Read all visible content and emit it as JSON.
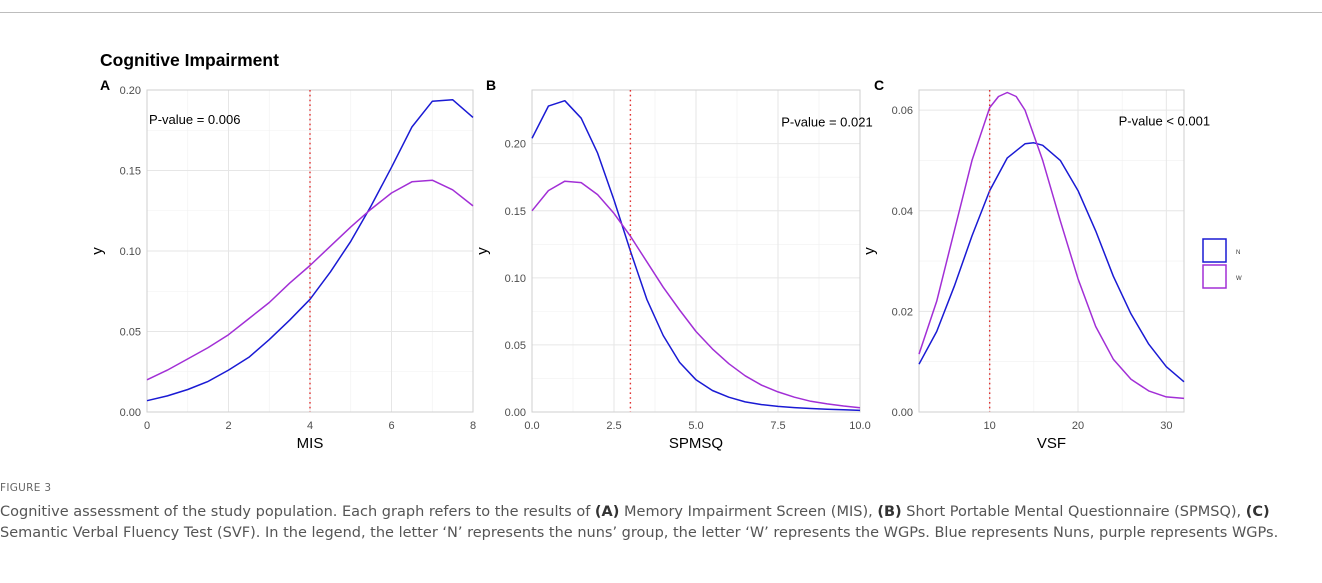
{
  "figure": {
    "super_title": "Cognitive Impairment",
    "caption_label": "FIGURE 3",
    "caption_parts": [
      {
        "text": "Cognitive assessment of the study population. Each graph refers to the results of ",
        "bold": false
      },
      {
        "text": "(A)",
        "bold": true
      },
      {
        "text": " Memory Impairment Screen (MIS), ",
        "bold": false
      },
      {
        "text": "(B)",
        "bold": true
      },
      {
        "text": " Short Portable Mental Questionnaire (SPMSQ), ",
        "bold": false
      },
      {
        "text": "(C)",
        "bold": true
      },
      {
        "text": " Semantic Verbal Fluency Test (SVF). In the legend, the letter ‘N’ represents the nuns’ group, the letter ‘W’ represents the WGPs. Blue represents Nuns, purple represents WGPs.",
        "bold": false
      }
    ]
  },
  "legend": {
    "position": "right",
    "items": [
      {
        "key": "N",
        "color": "#1a1ad4"
      },
      {
        "key": "W",
        "color": "#a22fd6"
      }
    ]
  },
  "colors": {
    "N": "#1a1ad4",
    "W": "#a22fd6",
    "vline": "#e03030",
    "grid": "#e6e6e6",
    "panel_border": "#cfcfcf",
    "tick_text": "#4d4d4d"
  },
  "chart_data": [
    {
      "panel": "A",
      "type": "line",
      "xlabel": "MIS",
      "ylabel": "y",
      "xlim": [
        0,
        8
      ],
      "ylim": [
        0,
        0.2
      ],
      "xticks": [
        0,
        2,
        4,
        6,
        8
      ],
      "yticks": [
        0,
        0.05,
        0.1,
        0.15,
        0.2
      ],
      "xtick_labels": [
        "0",
        "2",
        "4",
        "6",
        "8"
      ],
      "ytick_labels": [
        "0.00",
        "0.05",
        "0.10",
        "0.15",
        "0.20"
      ],
      "vline": 4,
      "annotation": {
        "text": "P-value = 0.006",
        "x": 0.05,
        "y": 0.182
      },
      "grid": true,
      "series": [
        {
          "key": "N",
          "x": [
            0,
            0.5,
            1,
            1.5,
            2,
            2.5,
            3,
            3.5,
            4,
            4.5,
            5,
            5.5,
            6,
            6.5,
            7,
            7.5,
            8
          ],
          "y": [
            0.007,
            0.01,
            0.014,
            0.019,
            0.026,
            0.034,
            0.045,
            0.057,
            0.07,
            0.087,
            0.106,
            0.128,
            0.152,
            0.177,
            0.193,
            0.194,
            0.183
          ]
        },
        {
          "key": "W",
          "x": [
            0,
            0.5,
            1,
            1.5,
            2,
            2.5,
            3,
            3.5,
            4,
            4.5,
            5,
            5.5,
            6,
            6.5,
            7,
            7.5,
            8
          ],
          "y": [
            0.02,
            0.026,
            0.033,
            0.04,
            0.048,
            0.058,
            0.068,
            0.08,
            0.091,
            0.103,
            0.115,
            0.126,
            0.136,
            0.143,
            0.144,
            0.138,
            0.128
          ]
        }
      ]
    },
    {
      "panel": "B",
      "type": "line",
      "xlabel": "SPMSQ",
      "ylabel": "y",
      "xlim": [
        0,
        10
      ],
      "ylim": [
        0,
        0.24
      ],
      "xticks": [
        0,
        2.5,
        5,
        7.5,
        10
      ],
      "yticks": [
        0,
        0.05,
        0.1,
        0.15,
        0.2
      ],
      "xtick_labels": [
        "0.0",
        "2.5",
        "5.0",
        "7.5",
        "10.0"
      ],
      "ytick_labels": [
        "0.00",
        "0.05",
        "0.10",
        "0.15",
        "0.20"
      ],
      "vline": 3,
      "annotation": {
        "text": "P-value = 0.021",
        "x": 7.6,
        "y": 0.2165
      },
      "grid": true,
      "series": [
        {
          "key": "N",
          "x": [
            0,
            0.5,
            1,
            1.5,
            2,
            2.5,
            3,
            3.5,
            4,
            4.5,
            5,
            5.5,
            6,
            6.5,
            7,
            7.5,
            8,
            8.5,
            9,
            9.5,
            10
          ],
          "y": [
            0.204,
            0.228,
            0.232,
            0.219,
            0.193,
            0.158,
            0.12,
            0.084,
            0.057,
            0.037,
            0.024,
            0.016,
            0.011,
            0.0075,
            0.0055,
            0.0042,
            0.0033,
            0.0026,
            0.0021,
            0.0017,
            0.0012
          ]
        },
        {
          "key": "W",
          "x": [
            0,
            0.5,
            1,
            1.5,
            2,
            2.5,
            3,
            3.5,
            4,
            4.5,
            5,
            5.5,
            6,
            6.5,
            7,
            7.5,
            8,
            8.5,
            9,
            9.5,
            10
          ],
          "y": [
            0.15,
            0.165,
            0.172,
            0.171,
            0.162,
            0.148,
            0.131,
            0.112,
            0.093,
            0.076,
            0.06,
            0.047,
            0.036,
            0.027,
            0.02,
            0.015,
            0.011,
            0.008,
            0.006,
            0.0045,
            0.0032
          ]
        }
      ]
    },
    {
      "panel": "C",
      "type": "line",
      "xlabel": "VSF",
      "ylabel": "y",
      "xlim": [
        2,
        32
      ],
      "ylim": [
        0,
        0.064
      ],
      "xticks": [
        10,
        20,
        30
      ],
      "yticks": [
        0,
        0.02,
        0.04,
        0.06
      ],
      "xtick_labels": [
        "10",
        "20",
        "30"
      ],
      "ytick_labels": [
        "0.00",
        "0.02",
        "0.04",
        "0.06"
      ],
      "vline": 10,
      "annotation": {
        "text": "P-value < 0.001",
        "x": 24.6,
        "y": 0.0579
      },
      "grid": true,
      "series": [
        {
          "key": "N",
          "x": [
            2,
            4,
            6,
            8,
            10,
            12,
            14,
            15,
            16,
            18,
            20,
            22,
            24,
            26,
            28,
            30,
            32
          ],
          "y": [
            0.0095,
            0.016,
            0.025,
            0.035,
            0.044,
            0.0505,
            0.0533,
            0.0535,
            0.053,
            0.05,
            0.044,
            0.036,
            0.027,
            0.0195,
            0.0135,
            0.009,
            0.006
          ]
        },
        {
          "key": "W",
          "x": [
            2,
            4,
            6,
            8,
            10,
            11,
            12,
            13,
            14,
            16,
            18,
            20,
            22,
            24,
            26,
            28,
            30,
            32
          ],
          "y": [
            0.0115,
            0.022,
            0.036,
            0.05,
            0.0605,
            0.0627,
            0.0635,
            0.0627,
            0.06,
            0.05,
            0.038,
            0.0265,
            0.017,
            0.0105,
            0.0065,
            0.0042,
            0.003,
            0.0027
          ]
        }
      ]
    }
  ]
}
